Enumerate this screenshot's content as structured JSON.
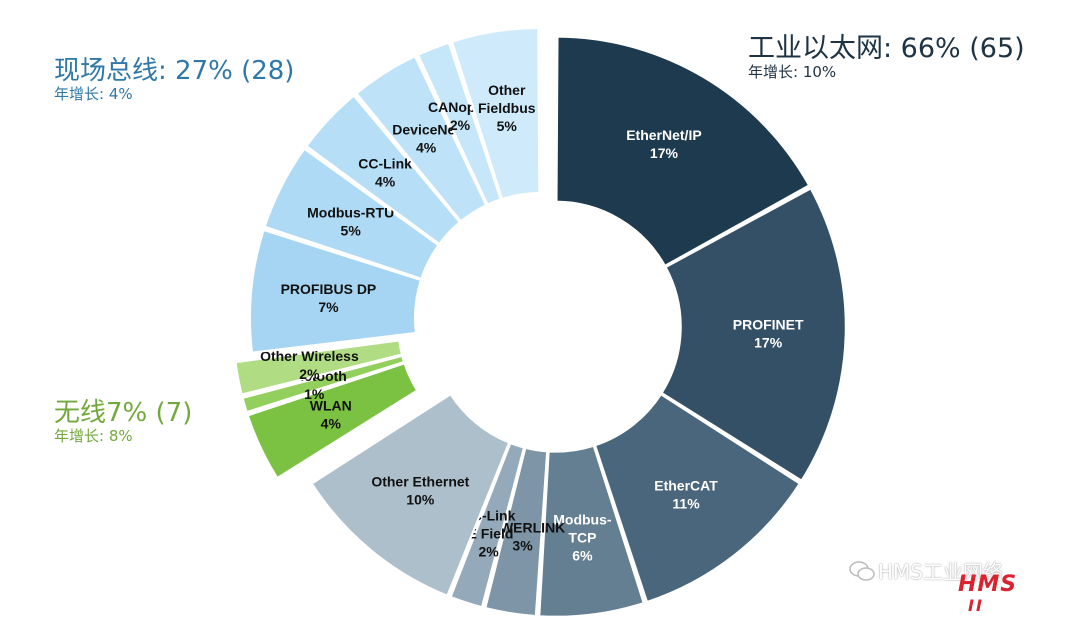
{
  "groups": {
    "ethernet": {
      "title": "工业以太网: 66% (65)",
      "growth": "年增长: 10%",
      "color": "#1e3343"
    },
    "fieldbus": {
      "title": "现场总线: 27% (28)",
      "growth": "年增长: 4%",
      "color": "#2f78a8"
    },
    "wireless": {
      "title": "无线7% (7)",
      "growth": "年增长: 8%",
      "color": "#72a93c"
    }
  },
  "watermark": "HMS工业网络",
  "logo": {
    "text": "HMS",
    "bars": "II"
  },
  "chart_data": {
    "type": "pie",
    "donut": true,
    "slices": [
      {
        "label": [
          "EtherNet/IP"
        ],
        "value": 17,
        "display": "17%",
        "group": "ethernet",
        "color": "#1e3a4f",
        "text_color": "#ffffff"
      },
      {
        "label": [
          "PROFINET"
        ],
        "value": 17,
        "display": "17%",
        "group": "ethernet",
        "color": "#345066",
        "text_color": "#ffffff"
      },
      {
        "label": [
          "EtherCAT"
        ],
        "value": 11,
        "display": "11%",
        "group": "ethernet",
        "color": "#4a667c",
        "text_color": "#ffffff"
      },
      {
        "label": [
          "Modbus-",
          "TCP"
        ],
        "value": 6,
        "display": "6%",
        "group": "ethernet",
        "color": "#647e92",
        "text_color": "#ffffff"
      },
      {
        "label": [
          "POWERLINK"
        ],
        "value": 3,
        "display": "3%",
        "group": "ethernet",
        "color": "#7d95a7",
        "text_color": "#111111"
      },
      {
        "label": [
          "CC-Link",
          "IE Field"
        ],
        "value": 2,
        "display": "2%",
        "group": "ethernet",
        "color": "#94aabb",
        "text_color": "#111111"
      },
      {
        "label": [
          "Other Ethernet"
        ],
        "value": 10,
        "display": "10%",
        "group": "ethernet",
        "color": "#aebfcc",
        "text_color": "#111111"
      },
      {
        "label": [
          "WLAN"
        ],
        "value": 4,
        "display": "4%",
        "group": "wireless",
        "color": "#7cc242",
        "text_color": "#111111"
      },
      {
        "label": [
          "Bluetooth"
        ],
        "value": 1,
        "display": "1%",
        "group": "wireless",
        "color": "#93cf5c",
        "text_color": "#111111"
      },
      {
        "label": [
          "Other Wireless"
        ],
        "value": 2,
        "display": "2%",
        "group": "wireless",
        "color": "#b0dc84",
        "text_color": "#111111"
      },
      {
        "label": [
          "PROFIBUS DP"
        ],
        "value": 7,
        "display": "7%",
        "group": "fieldbus",
        "color": "#a6d5f4",
        "text_color": "#111111"
      },
      {
        "label": [
          "Modbus-RTU"
        ],
        "value": 5,
        "display": "5%",
        "group": "fieldbus",
        "color": "#aedaf5",
        "text_color": "#111111"
      },
      {
        "label": [
          "CC-Link"
        ],
        "value": 4,
        "display": "4%",
        "group": "fieldbus",
        "color": "#b6def6",
        "text_color": "#111111"
      },
      {
        "label": [
          "DeviceNet"
        ],
        "value": 4,
        "display": "4%",
        "group": "fieldbus",
        "color": "#bee2f7",
        "text_color": "#111111"
      },
      {
        "label": [
          "CANopen"
        ],
        "value": 2,
        "display": "2%",
        "group": "fieldbus",
        "color": "#c6e6f9",
        "text_color": "#111111"
      },
      {
        "label": [
          "Other",
          "Fieldbus"
        ],
        "value": 5,
        "display": "5%",
        "group": "fieldbus",
        "color": "#cfeafa",
        "text_color": "#111111"
      }
    ]
  }
}
